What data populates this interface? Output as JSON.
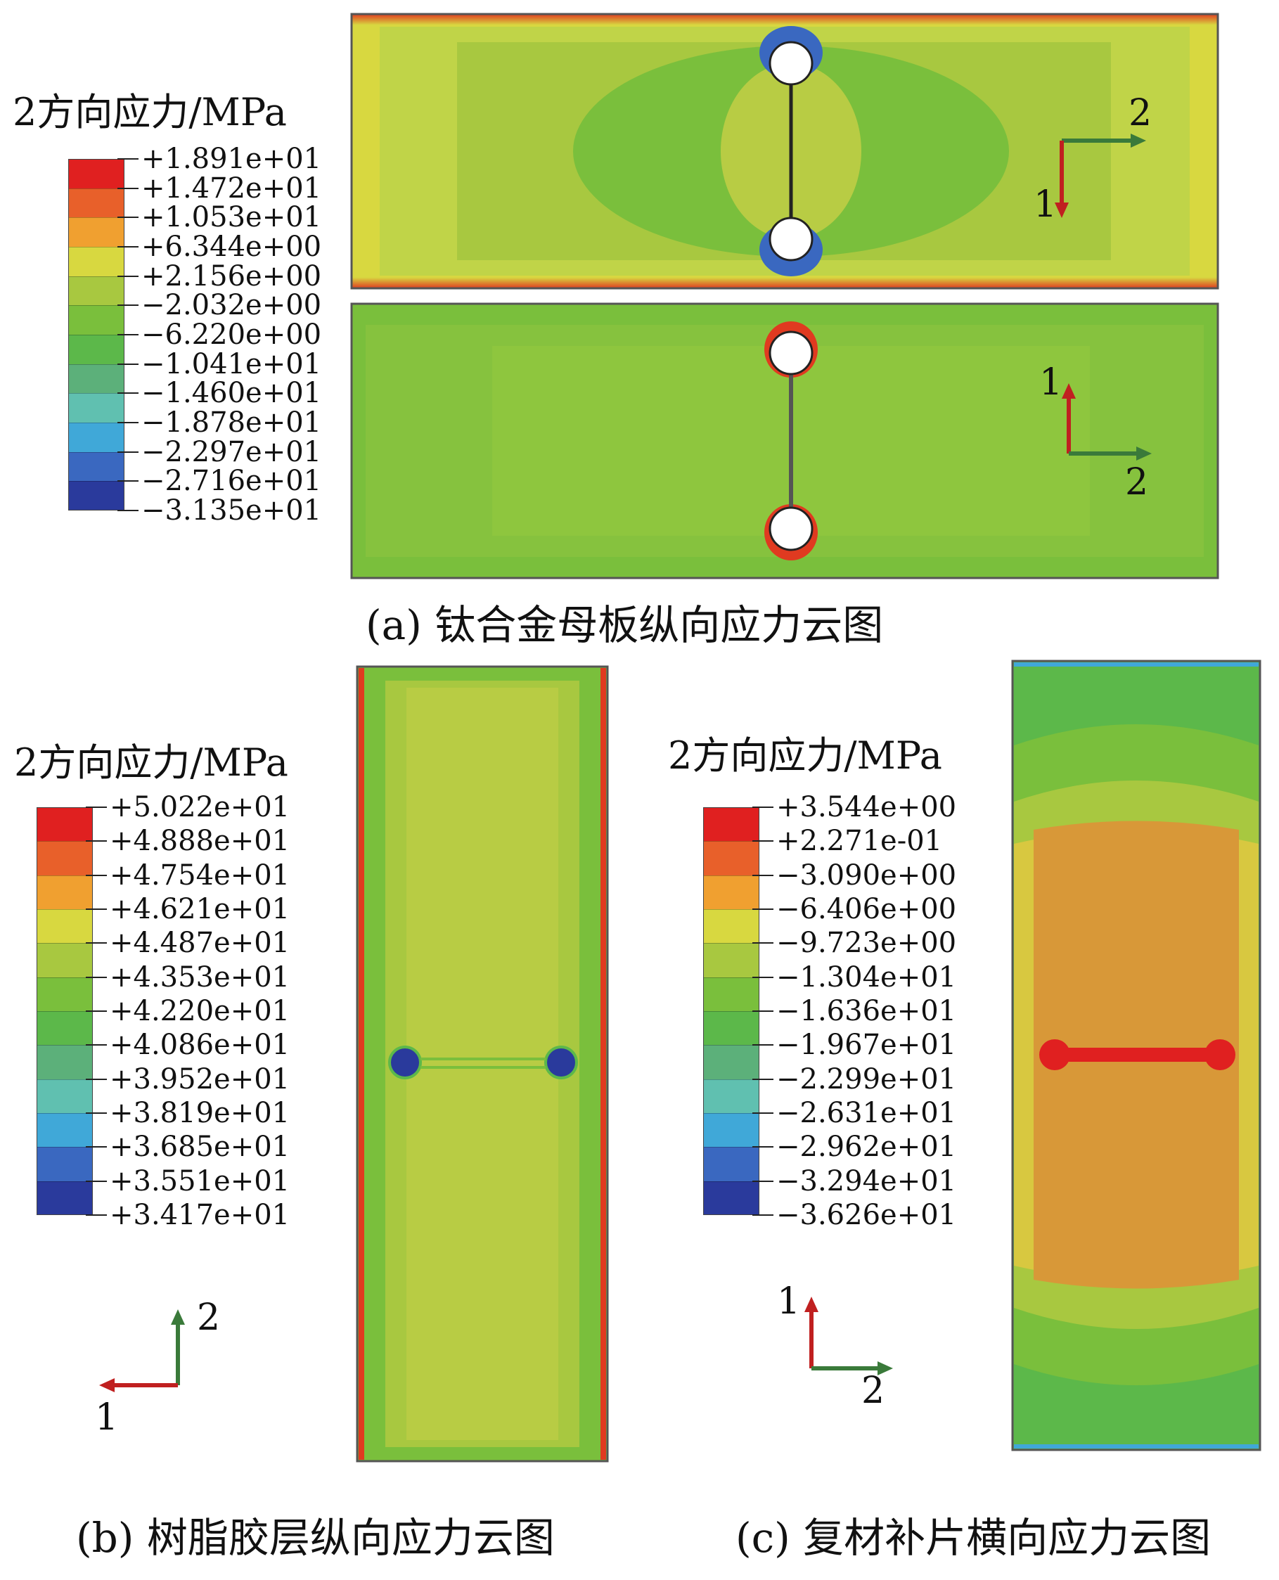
{
  "panel_a": {
    "legend_title": "2方向应力/MPa",
    "legend_labels": [
      "+1.891e+01",
      "+1.472e+01",
      "+1.053e+01",
      "+6.344e+00",
      "+2.156e+00",
      "−2.032e+00",
      "−6.220e+00",
      "−1.041e+01",
      "−1.460e+01",
      "−1.878e+01",
      "−2.297e+01",
      "−2.716e+01",
      "−3.135e+01"
    ],
    "colors": [
      "#e02020",
      "#e8602a",
      "#f0a030",
      "#d8d840",
      "#a8c840",
      "#7abf3c",
      "#5cb84a",
      "#5cb07a",
      "#60c0b0",
      "#40a8d8",
      "#3a68c0",
      "#2a3a9c"
    ],
    "top_triad": {
      "axis_a": "2",
      "axis_b": "1"
    },
    "bottom_triad": {
      "axis_a": "1",
      "axis_b": "2"
    },
    "caption": "(a) 钛合金母板纵向应力云图"
  },
  "panel_b": {
    "legend_title": "2方向应力/MPa",
    "legend_labels": [
      "+5.022e+01",
      "+4.888e+01",
      "+4.754e+01",
      "+4.621e+01",
      "+4.487e+01",
      "+4.353e+01",
      "+4.220e+01",
      "+4.086e+01",
      "+3.952e+01",
      "+3.819e+01",
      "+3.685e+01",
      "+3.551e+01",
      "+3.417e+01"
    ],
    "colors": [
      "#e02020",
      "#e8602a",
      "#f0a030",
      "#d8d840",
      "#a8c840",
      "#7abf3c",
      "#5cb84a",
      "#5cb07a",
      "#60c0b0",
      "#40a8d8",
      "#3a68c0",
      "#2a3a9c"
    ],
    "triad": {
      "axis_a": "2",
      "axis_b": "1"
    },
    "caption": "(b) 树脂胶层纵向应力云图"
  },
  "panel_c": {
    "legend_title": "2方向应力/MPa",
    "legend_labels": [
      "+3.544e+00",
      "+2.271e-01",
      "−3.090e+00",
      "−6.406e+00",
      "−9.723e+00",
      "−1.304e+01",
      "−1.636e+01",
      "−1.967e+01",
      "−2.299e+01",
      "−2.631e+01",
      "−2.962e+01",
      "−3.294e+01",
      "−3.626e+01"
    ],
    "colors": [
      "#e02020",
      "#e8602a",
      "#f0a030",
      "#d8d840",
      "#a8c840",
      "#7abf3c",
      "#5cb84a",
      "#5cb07a",
      "#60c0b0",
      "#40a8d8",
      "#3a68c0",
      "#2a3a9c"
    ],
    "triad": {
      "axis_a": "1",
      "axis_b": "2"
    },
    "caption": "(c) 复材补片横向应力云图"
  }
}
